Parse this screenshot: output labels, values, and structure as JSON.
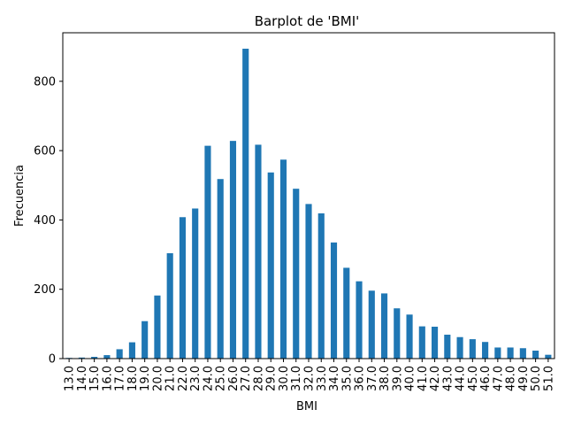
{
  "chart_data": {
    "type": "bar",
    "title": "Barplot de 'BMI'",
    "xlabel": "BMI",
    "ylabel": "Frecuencia",
    "ylim": [
      0,
      940
    ],
    "yticks": [
      0,
      200,
      400,
      600,
      800
    ],
    "grid": false,
    "bar_color": "#1f77b4",
    "categories": [
      "13.0",
      "14.0",
      "15.0",
      "16.0",
      "17.0",
      "18.0",
      "19.0",
      "20.0",
      "21.0",
      "22.0",
      "23.0",
      "24.0",
      "25.0",
      "26.0",
      "27.0",
      "28.0",
      "29.0",
      "30.0",
      "31.0",
      "32.0",
      "33.0",
      "34.0",
      "35.0",
      "36.0",
      "37.0",
      "38.0",
      "39.0",
      "40.0",
      "41.0",
      "42.0",
      "43.0",
      "44.0",
      "45.0",
      "46.0",
      "47.0",
      "48.0",
      "49.0",
      "50.0",
      "51.0"
    ],
    "values": [
      2,
      3,
      5,
      10,
      27,
      47,
      108,
      182,
      304,
      408,
      433,
      614,
      518,
      628,
      894,
      617,
      537,
      574,
      490,
      446,
      419,
      335,
      262,
      223,
      196,
      188,
      145,
      127,
      93,
      92,
      69,
      62,
      56,
      48,
      32,
      32,
      30,
      23,
      11
    ]
  }
}
